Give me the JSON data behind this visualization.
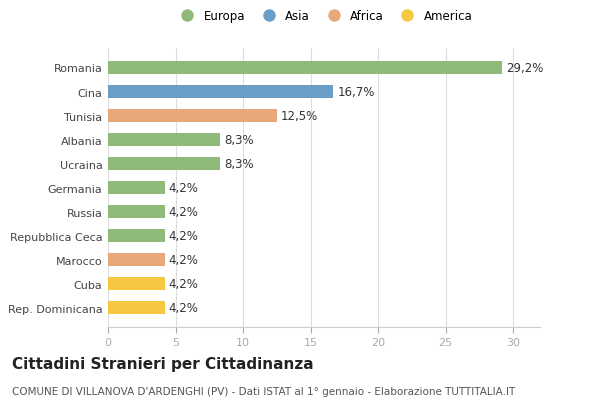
{
  "categories": [
    "Rep. Dominicana",
    "Cuba",
    "Marocco",
    "Repubblica Ceca",
    "Russia",
    "Germania",
    "Ucraina",
    "Albania",
    "Tunisia",
    "Cina",
    "Romania"
  ],
  "values": [
    4.2,
    4.2,
    4.2,
    4.2,
    4.2,
    4.2,
    8.3,
    8.3,
    12.5,
    16.7,
    29.2
  ],
  "labels": [
    "4,2%",
    "4,2%",
    "4,2%",
    "4,2%",
    "4,2%",
    "4,2%",
    "8,3%",
    "8,3%",
    "12,5%",
    "16,7%",
    "29,2%"
  ],
  "colors": [
    "#f5c842",
    "#f5c842",
    "#e8a87c",
    "#8fba7a",
    "#8fba7a",
    "#8fba7a",
    "#8fba7a",
    "#8fba7a",
    "#e8a87c",
    "#6b9ec7",
    "#8fba7a"
  ],
  "legend_labels": [
    "Europa",
    "Asia",
    "Africa",
    "America"
  ],
  "legend_colors": [
    "#8fba7a",
    "#6b9ec7",
    "#e8a87c",
    "#f5c842"
  ],
  "xlim": [
    0,
    32
  ],
  "xticks": [
    0,
    5,
    10,
    15,
    20,
    25,
    30
  ],
  "title": "Cittadini Stranieri per Cittadinanza",
  "subtitle": "COMUNE DI VILLANOVA D'ARDENGHI (PV) - Dati ISTAT al 1° gennaio - Elaborazione TUTTITALIA.IT",
  "bg_color": "#ffffff",
  "plot_bg_color": "#ffffff",
  "bar_height": 0.55,
  "label_fontsize": 8.5,
  "title_fontsize": 11,
  "subtitle_fontsize": 7.5,
  "ytick_fontsize": 8,
  "xtick_fontsize": 8
}
